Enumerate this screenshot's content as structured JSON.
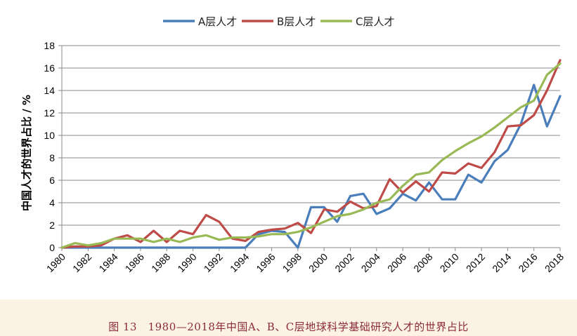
{
  "caption": "图 13　1980—2018年中国A、B、C层地球科学基础研究人才的世界占比",
  "chart_data": {
    "type": "line",
    "title": "",
    "xlabel": "",
    "ylabel": "中国人才的世界占比 / %",
    "xlim": [
      1980,
      2018
    ],
    "ylim": [
      0,
      18
    ],
    "y_ticks": [
      0,
      2,
      4,
      6,
      8,
      10,
      12,
      14,
      16,
      18
    ],
    "x_tick_labels": [
      "1980",
      "1982",
      "1984",
      "1986",
      "1988",
      "1990",
      "1992",
      "1994",
      "1996",
      "1998",
      "2000",
      "2002",
      "2004",
      "2006",
      "2008",
      "2010",
      "2012",
      "2014",
      "2016",
      "2018"
    ],
    "grid": "horizontal",
    "legend": "top",
    "x": [
      1980,
      1981,
      1982,
      1983,
      1984,
      1985,
      1986,
      1987,
      1988,
      1989,
      1990,
      1991,
      1992,
      1993,
      1994,
      1995,
      1996,
      1997,
      1998,
      1999,
      2000,
      2001,
      2002,
      2003,
      2004,
      2005,
      2006,
      2007,
      2008,
      2009,
      2010,
      2011,
      2012,
      2013,
      2014,
      2015,
      2016,
      2017,
      2018
    ],
    "series": [
      {
        "name": "A层人才",
        "color": "#4a7ebb",
        "values": [
          0,
          0,
          0,
          0,
          0,
          0,
          0,
          0,
          0,
          0,
          0,
          0,
          0,
          0,
          0,
          1.2,
          1.5,
          1.4,
          0,
          3.6,
          3.6,
          2.3,
          4.6,
          4.8,
          3.0,
          3.5,
          4.8,
          4.2,
          5.8,
          4.3,
          4.3,
          6.5,
          5.8,
          7.7,
          8.7,
          11.0,
          14.5,
          10.8,
          13.5
        ]
      },
      {
        "name": "B层人才",
        "color": "#be4b48",
        "values": [
          0,
          0.1,
          0.1,
          0.2,
          0.8,
          1.1,
          0.5,
          1.5,
          0.5,
          1.5,
          1.2,
          2.9,
          2.3,
          0.8,
          0.6,
          1.4,
          1.6,
          1.7,
          2.2,
          1.3,
          3.4,
          3.2,
          4.1,
          3.5,
          3.7,
          6.1,
          4.9,
          5.9,
          5.0,
          6.7,
          6.6,
          7.5,
          7.1,
          8.5,
          10.8,
          10.9,
          11.8,
          14.0,
          16.7
        ]
      },
      {
        "name": "C层人才",
        "color": "#98b954",
        "values": [
          0,
          0.4,
          0.2,
          0.4,
          0.8,
          0.8,
          0.8,
          0.5,
          0.8,
          0.5,
          0.9,
          1.1,
          0.7,
          0.9,
          0.9,
          1.0,
          1.2,
          1.2,
          1.4,
          1.8,
          2.3,
          2.8,
          3.0,
          3.4,
          4.0,
          4.3,
          5.5,
          6.5,
          6.7,
          7.8,
          8.6,
          9.3,
          9.9,
          10.7,
          11.6,
          12.5,
          13.1,
          15.4,
          16.4
        ]
      }
    ]
  }
}
